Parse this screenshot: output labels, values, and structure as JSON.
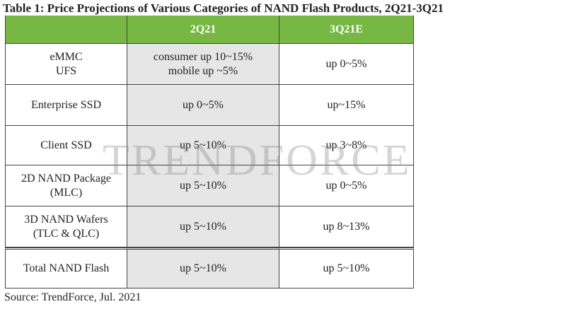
{
  "header": {
    "title": "Table 1: Price Projections of Various Categories of NAND Flash Products, 2Q21-3Q21"
  },
  "table": {
    "columns": [
      "",
      "2Q21",
      "3Q21E"
    ],
    "rows": [
      [
        [
          "eMMC",
          "UFS"
        ],
        [
          "consumer up 10~15%",
          "mobile up ~5%"
        ],
        [
          "up 0~5%"
        ]
      ],
      [
        [
          "Enterprise SSD"
        ],
        [
          "up 0~5%"
        ],
        [
          "up~15%"
        ]
      ],
      [
        [
          "Client SSD"
        ],
        [
          "up 5~10%"
        ],
        [
          "up 3~8%"
        ]
      ],
      [
        [
          "2D NAND Package",
          "(MLC)"
        ],
        [
          "up 5~10%"
        ],
        [
          "up 0~5%"
        ]
      ],
      [
        [
          "3D NAND Wafers",
          "(TLC & QLC)"
        ],
        [
          "up 5~10%"
        ],
        [
          "up 8~13%"
        ]
      ],
      [
        [
          "Total NAND Flash"
        ],
        [
          "up 5~10%"
        ],
        [
          "up 5~10%"
        ]
      ]
    ]
  },
  "watermark": "TrendForce",
  "footer": {
    "source": "Source: TrendForce, Jul. 2021"
  }
}
